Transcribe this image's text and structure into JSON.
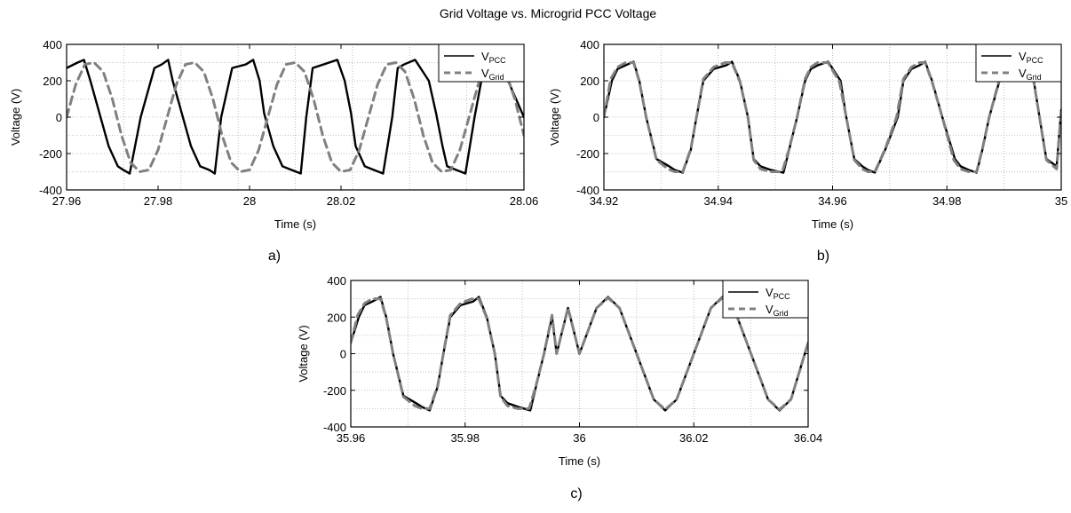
{
  "figure": {
    "title": "Grid Voltage vs. Microgrid PCC Voltage"
  },
  "colors": {
    "pcc": "#000000",
    "grid": "#808080",
    "grid_lines": "#b0b0b0"
  },
  "chart_data": [
    {
      "panel": "a)",
      "type": "line",
      "xlabel": "Time (s)",
      "ylabel": "Voltage (V)",
      "xlim": [
        27.96,
        28.06
      ],
      "ylim": [
        -400,
        400
      ],
      "xticks": [
        "27.96",
        "27.98",
        "28",
        "28.02",
        "28.06"
      ],
      "xtick_values": [
        27.96,
        27.98,
        28.0,
        28.02,
        28.06
      ],
      "yticks": [
        "400",
        "200",
        "0",
        "-200",
        "-400"
      ],
      "ytick_values": [
        400,
        200,
        0,
        -200,
        -400
      ],
      "grid": true,
      "legend_position": "top-right",
      "series": [
        {
          "name": "V",
          "subscript": "PCC",
          "style": "solid",
          "color": "#000000",
          "x": [
            27.96,
            27.9624,
            27.9638,
            27.9652,
            27.9672,
            27.9692,
            27.9712,
            27.9724,
            27.9738,
            27.9762,
            27.9792,
            27.9808,
            27.9822,
            27.9832,
            27.9852,
            27.9872,
            27.9892,
            27.9912,
            27.9924,
            27.9938,
            27.9962,
            27.9992,
            28.0008,
            28.0022,
            28.0032,
            28.0052,
            28.0072,
            28.0092,
            28.0112,
            28.0124,
            28.0138,
            28.0162,
            28.0192,
            28.0208,
            28.0222,
            28.0232,
            28.0252,
            28.0272,
            28.0292,
            28.0312,
            28.0324,
            28.0338,
            28.0362,
            28.0392,
            28.0408,
            28.0422,
            28.0432,
            28.0452,
            28.0472,
            28.0492,
            28.0512,
            28.0524,
            28.0538,
            28.056,
            28.06
          ],
          "y": [
            270,
            300,
            315,
            200,
            20,
            -160,
            -270,
            -290,
            -310,
            0,
            270,
            290,
            315,
            200,
            20,
            -160,
            -270,
            -290,
            -310,
            0,
            270,
            290,
            315,
            200,
            20,
            -160,
            -270,
            -290,
            -310,
            0,
            270,
            290,
            315,
            200,
            20,
            -160,
            -270,
            -290,
            -310,
            0,
            270,
            290,
            315,
            200,
            20,
            -160,
            -270,
            -290,
            -310,
            0,
            270,
            290,
            315,
            230,
            0
          ]
        },
        {
          "name": "V",
          "subscript": "Grid",
          "style": "dashed",
          "color": "#808080",
          "x": [
            27.96,
            27.962,
            27.964,
            27.966,
            27.968,
            27.97,
            27.972,
            27.974,
            27.976,
            27.978,
            27.98,
            27.982,
            27.984,
            27.986,
            27.988,
            27.99,
            27.992,
            27.994,
            27.996,
            27.998,
            28.0,
            28.002,
            28.004,
            28.006,
            28.008,
            28.01,
            28.012,
            28.014,
            28.016,
            28.018,
            28.02,
            28.022,
            28.024,
            28.026,
            28.028,
            28.03,
            28.032,
            28.034,
            28.036,
            28.038,
            28.04,
            28.042,
            28.044,
            28.046,
            28.048,
            28.05,
            28.052,
            28.054,
            28.056,
            28.058,
            28.06
          ],
          "y": [
            0,
            180,
            290,
            300,
            250,
            100,
            -100,
            -250,
            -300,
            -290,
            -180,
            0,
            180,
            290,
            300,
            250,
            100,
            -100,
            -250,
            -300,
            -290,
            -180,
            0,
            180,
            290,
            300,
            250,
            100,
            -100,
            -250,
            -300,
            -290,
            -180,
            0,
            180,
            290,
            300,
            250,
            100,
            -100,
            -250,
            -300,
            -290,
            -180,
            0,
            180,
            290,
            300,
            250,
            100,
            -100
          ]
        }
      ]
    },
    {
      "panel": "b)",
      "type": "line",
      "xlabel": "Time (s)",
      "ylabel": "Voltage (V)",
      "xlim": [
        34.92,
        35.0
      ],
      "ylim": [
        -400,
        400
      ],
      "xticks": [
        "34.92",
        "34.94",
        "34.96",
        "34.98",
        "35"
      ],
      "xtick_values": [
        34.92,
        34.94,
        34.96,
        34.98,
        35.0
      ],
      "yticks": [
        "400",
        "200",
        "0",
        "-200",
        "-400"
      ],
      "ytick_values": [
        400,
        200,
        0,
        -200,
        -400
      ],
      "grid": true,
      "legend_position": "top-right",
      "series": [
        {
          "name": "V",
          "subscript": "PCC",
          "style": "solid",
          "color": "#000000",
          "x": [
            34.92,
            34.9214,
            34.9224,
            34.9238,
            34.9252,
            34.9262,
            34.9274,
            34.9292,
            34.9314,
            34.9324,
            34.9338,
            34.9352,
            34.9362,
            34.9374,
            34.9392,
            34.9414,
            34.9424,
            34.9438,
            34.9452,
            34.9462,
            34.9474,
            34.9492,
            34.9514,
            34.9524,
            34.9538,
            34.9552,
            34.9562,
            34.9574,
            34.9592,
            34.9614,
            34.9624,
            34.9638,
            34.9652,
            34.9662,
            34.9674,
            34.9692,
            34.9714,
            34.9724,
            34.9738,
            34.9752,
            34.9762,
            34.9774,
            34.9792,
            34.9814,
            34.9824,
            34.9838,
            34.9852,
            34.9862,
            34.9874,
            34.9892,
            34.9914,
            34.9924,
            34.9938,
            34.9952,
            34.9962,
            34.9974,
            34.9992,
            35.0
          ],
          "y": [
            0,
            200,
            265,
            285,
            305,
            200,
            0,
            -230,
            -270,
            -290,
            -305,
            -180,
            0,
            200,
            265,
            285,
            305,
            200,
            0,
            -230,
            -270,
            -290,
            -305,
            -180,
            0,
            200,
            265,
            285,
            305,
            200,
            0,
            -230,
            -270,
            -290,
            -305,
            -180,
            0,
            200,
            265,
            285,
            305,
            200,
            0,
            -230,
            -270,
            -290,
            -305,
            -180,
            0,
            200,
            265,
            285,
            305,
            200,
            0,
            -230,
            -270,
            40
          ]
        },
        {
          "name": "V",
          "subscript": "Grid",
          "style": "dashed",
          "color": "#808080",
          "x": [
            34.92,
            34.9212,
            34.9224,
            34.9238,
            34.9252,
            34.9262,
            34.9274,
            34.9292,
            34.9312,
            34.9324,
            34.9338,
            34.9352,
            34.9362,
            34.9374,
            34.9392,
            34.9412,
            34.9424,
            34.9438,
            34.9452,
            34.9462,
            34.9474,
            34.9492,
            34.9512,
            34.9524,
            34.9538,
            34.9552,
            34.9562,
            34.9574,
            34.9592,
            34.9612,
            34.9624,
            34.9638,
            34.9652,
            34.9662,
            34.9674,
            34.9692,
            34.9712,
            34.9724,
            34.9738,
            34.9752,
            34.9762,
            34.9774,
            34.9792,
            34.9812,
            34.9824,
            34.9838,
            34.9852,
            34.9862,
            34.9874,
            34.9892,
            34.9912,
            34.9924,
            34.9938,
            34.9952,
            34.9962,
            34.9974,
            34.9992,
            35.0
          ],
          "y": [
            0,
            210,
            275,
            300,
            300,
            195,
            0,
            -235,
            -285,
            -300,
            -300,
            -175,
            0,
            210,
            275,
            300,
            300,
            195,
            0,
            -235,
            -285,
            -300,
            -300,
            -175,
            0,
            210,
            275,
            300,
            300,
            195,
            0,
            -235,
            -285,
            -300,
            -300,
            -175,
            0,
            210,
            275,
            300,
            300,
            195,
            0,
            -235,
            -285,
            -300,
            -300,
            -175,
            0,
            210,
            275,
            300,
            300,
            195,
            0,
            -235,
            -285,
            40
          ]
        }
      ]
    },
    {
      "panel": "c)",
      "type": "line",
      "xlabel": "Time (s)",
      "ylabel": "Voltage (V)",
      "xlim": [
        35.96,
        36.04
      ],
      "ylim": [
        -400,
        400
      ],
      "xticks": [
        "35.96",
        "35.98",
        "36",
        "36.02",
        "36.04"
      ],
      "xtick_values": [
        35.96,
        35.98,
        36.0,
        36.02,
        36.04
      ],
      "yticks": [
        "400",
        "200",
        "0",
        "-200",
        "-400"
      ],
      "ytick_values": [
        400,
        200,
        0,
        -200,
        -400
      ],
      "grid": true,
      "legend_position": "top-right",
      "series": [
        {
          "name": "V",
          "subscript": "PCC",
          "style": "solid",
          "color": "#000000",
          "x": [
            35.96,
            35.9614,
            35.9624,
            35.9638,
            35.9652,
            35.9662,
            35.9674,
            35.9692,
            35.9714,
            35.9724,
            35.9738,
            35.9752,
            35.9762,
            35.9774,
            35.9792,
            35.9814,
            35.9824,
            35.9838,
            35.9852,
            35.9862,
            35.9874,
            35.9892,
            35.9914,
            35.9924,
            35.9938,
            35.9952,
            35.996,
            35.998,
            36.0,
            36.003,
            36.005,
            36.007,
            36.01,
            36.013,
            36.015,
            36.017,
            36.02,
            36.023,
            36.025,
            36.027,
            36.03,
            36.033,
            36.035,
            36.037,
            36.04
          ],
          "y": [
            60,
            200,
            265,
            285,
            310,
            200,
            0,
            -230,
            -270,
            -290,
            -310,
            -180,
            0,
            200,
            265,
            285,
            310,
            200,
            0,
            -230,
            -270,
            -290,
            -310,
            -180,
            0,
            200,
            0,
            250,
            0,
            250,
            310,
            250,
            0,
            -250,
            -310,
            -250,
            0,
            250,
            310,
            250,
            0,
            -250,
            -310,
            -250,
            60
          ]
        },
        {
          "name": "V",
          "subscript": "Grid",
          "style": "dashed",
          "color": "#808080",
          "x": [
            35.96,
            35.9612,
            35.9624,
            35.9638,
            35.9652,
            35.9662,
            35.9674,
            35.9692,
            35.9712,
            35.9724,
            35.9738,
            35.9752,
            35.9762,
            35.9774,
            35.9792,
            35.9812,
            35.9824,
            35.9838,
            35.9852,
            35.9862,
            35.9874,
            35.9892,
            35.9912,
            35.9924,
            35.9938,
            35.9952,
            35.996,
            35.998,
            36.0,
            36.003,
            36.005,
            36.007,
            36.01,
            36.013,
            36.015,
            36.017,
            36.02,
            36.023,
            36.025,
            36.027,
            36.03,
            36.033,
            36.035,
            36.037,
            36.04
          ],
          "y": [
            60,
            210,
            275,
            300,
            300,
            195,
            0,
            -235,
            -285,
            -300,
            -300,
            -175,
            0,
            210,
            275,
            300,
            300,
            195,
            0,
            -235,
            -285,
            -300,
            -300,
            -175,
            0,
            210,
            0,
            250,
            0,
            250,
            305,
            250,
            0,
            -250,
            -305,
            -250,
            0,
            250,
            305,
            250,
            0,
            -250,
            -305,
            -250,
            60
          ]
        }
      ]
    }
  ]
}
